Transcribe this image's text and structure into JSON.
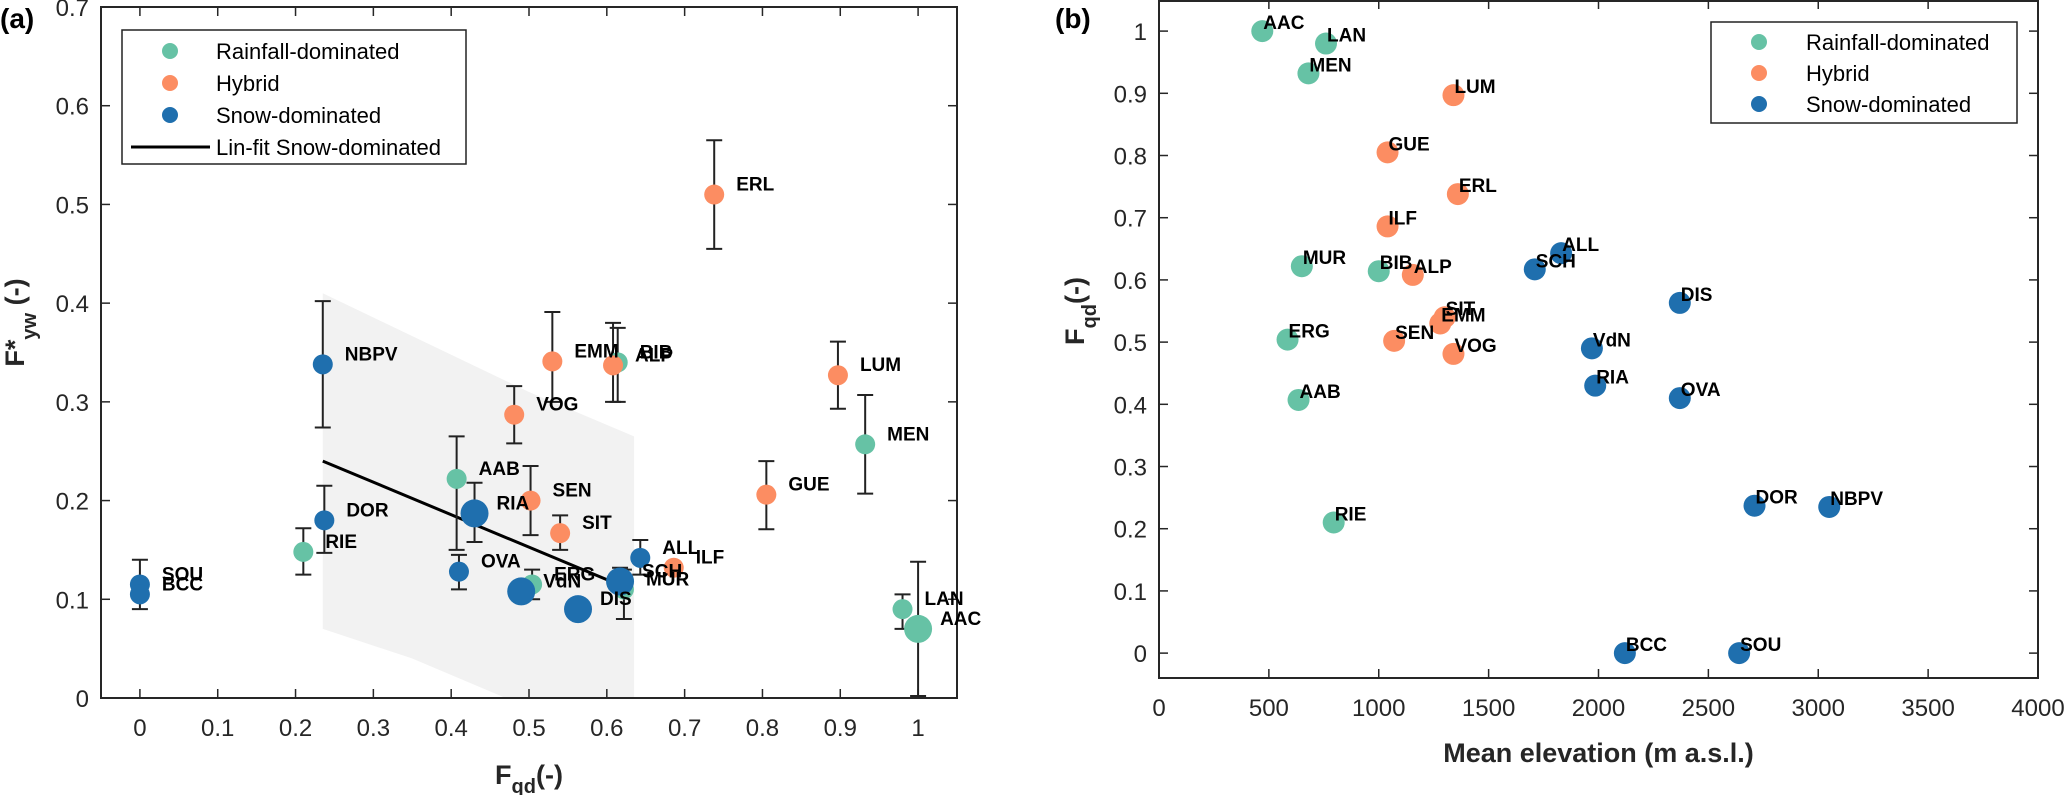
{
  "chart_data": [
    {
      "panel_label": "(a)",
      "type": "scatter",
      "xlabel_main": "F",
      "xlabel_sub": "qd",
      "xlabel_suffix": "(-)",
      "ylabel_main": "F*",
      "ylabel_sub": "yw",
      "ylabel_suffix": " (-)",
      "xlim": [
        -0.05,
        1.05
      ],
      "ylim": [
        0,
        0.7
      ],
      "xticks": [
        "0",
        "0.1",
        "0.2",
        "0.3",
        "0.4",
        "0.5",
        "0.6",
        "0.7",
        "0.8",
        "0.9",
        "1"
      ],
      "xtick_values": [
        0,
        0.1,
        0.2,
        0.3,
        0.4,
        0.5,
        0.6,
        0.7,
        0.8,
        0.9,
        1.0
      ],
      "yticks": [
        "0",
        "0.1",
        "0.2",
        "0.3",
        "0.4",
        "0.5",
        "0.6",
        "0.7"
      ],
      "ytick_values": [
        0,
        0.1,
        0.2,
        0.3,
        0.4,
        0.5,
        0.6,
        0.7
      ],
      "grid": false,
      "legend": {
        "placement": "top-left",
        "entries": [
          {
            "label": "Rainfall-dominated",
            "kind": "marker",
            "group": "rain"
          },
          {
            "label": "Hybrid",
            "kind": "marker",
            "group": "hybrid"
          },
          {
            "label": "Snow-dominated",
            "kind": "marker",
            "group": "snow"
          },
          {
            "label": "Lin-fit Snow-dominated",
            "kind": "line"
          }
        ]
      },
      "fit_line": {
        "x": [
          0.235,
          0.63
        ],
        "y": [
          0.24,
          0.11
        ]
      },
      "confidence_band": {
        "upper": [
          [
            0.235,
            0.41
          ],
          [
            0.5,
            0.31
          ],
          [
            0.635,
            0.265
          ]
        ],
        "lower": [
          [
            0.235,
            0.07
          ],
          [
            0.35,
            0.04
          ],
          [
            0.47,
            0.0
          ],
          [
            0.635,
            0.0
          ]
        ]
      },
      "points": [
        {
          "name": "SOU",
          "group": "snow",
          "x": 0.0,
          "y": 0.115,
          "err": [
            0.105,
            0.14
          ],
          "big": false
        },
        {
          "name": "BCC",
          "group": "snow",
          "x": 0.0,
          "y": 0.105,
          "err": [
            0.09,
            0.115
          ],
          "big": false
        },
        {
          "name": "RIE",
          "group": "rain",
          "x": 0.21,
          "y": 0.148,
          "err": [
            0.125,
            0.172
          ],
          "big": false
        },
        {
          "name": "DOR",
          "group": "snow",
          "x": 0.237,
          "y": 0.18,
          "err": [
            0.147,
            0.215
          ],
          "big": false
        },
        {
          "name": "NBPV",
          "group": "snow",
          "x": 0.235,
          "y": 0.338,
          "err": [
            0.274,
            0.402
          ],
          "big": false
        },
        {
          "name": "AAB",
          "group": "rain",
          "x": 0.407,
          "y": 0.222,
          "err": [
            0.15,
            0.265
          ],
          "big": false
        },
        {
          "name": "RIA",
          "group": "snow",
          "x": 0.43,
          "y": 0.187,
          "err": [
            0.158,
            0.218
          ],
          "big": true
        },
        {
          "name": "OVA",
          "group": "snow",
          "x": 0.41,
          "y": 0.128,
          "err": [
            0.11,
            0.145
          ],
          "big": false
        },
        {
          "name": "ERG",
          "group": "rain",
          "x": 0.504,
          "y": 0.115,
          "err": [
            0.1,
            0.13
          ],
          "big": false
        },
        {
          "name": "VdN",
          "group": "snow",
          "x": 0.49,
          "y": 0.108,
          "err": null,
          "big": true
        },
        {
          "name": "SEN",
          "group": "hybrid",
          "x": 0.502,
          "y": 0.2,
          "err": [
            0.165,
            0.235
          ],
          "big": false
        },
        {
          "name": "VOG",
          "group": "hybrid",
          "x": 0.481,
          "y": 0.287,
          "err": [
            0.258,
            0.316
          ],
          "big": false
        },
        {
          "name": "EMM",
          "group": "hybrid",
          "x": 0.53,
          "y": 0.341,
          "err": [
            0.3,
            0.391
          ],
          "big": false
        },
        {
          "name": "SIT",
          "group": "hybrid",
          "x": 0.54,
          "y": 0.167,
          "err": [
            0.15,
            0.185
          ],
          "big": false
        },
        {
          "name": "DIS",
          "group": "snow",
          "x": 0.563,
          "y": 0.09,
          "err": null,
          "big": true
        },
        {
          "name": "BIB",
          "group": "rain",
          "x": 0.614,
          "y": 0.34,
          "err": [
            0.3,
            0.375
          ],
          "big": false
        },
        {
          "name": "ALP",
          "group": "hybrid",
          "x": 0.608,
          "y": 0.337,
          "err": [
            0.3,
            0.38
          ],
          "big": false
        },
        {
          "name": "MUR",
          "group": "rain",
          "x": 0.622,
          "y": 0.11,
          "err": [
            0.08,
            0.13
          ],
          "big": false
        },
        {
          "name": "SCH",
          "group": "snow",
          "x": 0.617,
          "y": 0.118,
          "err": [
            0.11,
            0.132
          ],
          "big": true
        },
        {
          "name": "ALL",
          "group": "snow",
          "x": 0.643,
          "y": 0.142,
          "err": [
            0.125,
            0.16
          ],
          "big": false
        },
        {
          "name": "ILF",
          "group": "hybrid",
          "x": 0.686,
          "y": 0.132,
          "err": null,
          "big": false
        },
        {
          "name": "ERL",
          "group": "hybrid",
          "x": 0.738,
          "y": 0.51,
          "err": [
            0.455,
            0.565
          ],
          "big": false
        },
        {
          "name": "GUE",
          "group": "hybrid",
          "x": 0.805,
          "y": 0.206,
          "err": [
            0.171,
            0.24
          ],
          "big": false
        },
        {
          "name": "LUM",
          "group": "hybrid",
          "x": 0.897,
          "y": 0.327,
          "err": [
            0.293,
            0.361
          ],
          "big": false
        },
        {
          "name": "MEN",
          "group": "rain",
          "x": 0.932,
          "y": 0.257,
          "err": [
            0.207,
            0.307
          ],
          "big": false
        },
        {
          "name": "LAN",
          "group": "rain",
          "x": 0.98,
          "y": 0.09,
          "err": [
            0.07,
            0.105
          ],
          "big": false
        },
        {
          "name": "AAC",
          "group": "rain",
          "x": 1.0,
          "y": 0.07,
          "err": [
            0.002,
            0.138
          ],
          "big": true
        }
      ]
    },
    {
      "panel_label": "(b)",
      "type": "scatter",
      "xlabel": "Mean elevation (m a.s.l.)",
      "ylabel_main": "F",
      "ylabel_sub": "qd",
      "ylabel_suffix": "(-)",
      "xlim": [
        0,
        4000
      ],
      "ylim": [
        -0.04,
        1.05
      ],
      "xticks": [
        "0",
        "500",
        "1000",
        "1500",
        "2000",
        "2500",
        "3000",
        "3500",
        "4000"
      ],
      "xtick_values": [
        0,
        500,
        1000,
        1500,
        2000,
        2500,
        3000,
        3500,
        4000
      ],
      "yticks": [
        "0",
        "0.1",
        "0.2",
        "0.3",
        "0.4",
        "0.5",
        "0.6",
        "0.7",
        "0.8",
        "0.9",
        "1"
      ],
      "ytick_values": [
        0,
        0.1,
        0.2,
        0.3,
        0.4,
        0.5,
        0.6,
        0.7,
        0.8,
        0.9,
        1.0
      ],
      "grid": false,
      "legend": {
        "placement": "top-right",
        "entries": [
          {
            "label": "Rainfall-dominated",
            "group": "rain"
          },
          {
            "label": "Hybrid",
            "group": "hybrid"
          },
          {
            "label": "Snow-dominated",
            "group": "snow"
          }
        ]
      },
      "points": [
        {
          "name": "AAC",
          "group": "rain",
          "x": 470,
          "y": 1.0
        },
        {
          "name": "LAN",
          "group": "rain",
          "x": 760,
          "y": 0.98
        },
        {
          "name": "MEN",
          "group": "rain",
          "x": 680,
          "y": 0.932
        },
        {
          "name": "LUM",
          "group": "hybrid",
          "x": 1340,
          "y": 0.897
        },
        {
          "name": "GUE",
          "group": "hybrid",
          "x": 1040,
          "y": 0.805
        },
        {
          "name": "ERL",
          "group": "hybrid",
          "x": 1360,
          "y": 0.738
        },
        {
          "name": "ILF",
          "group": "hybrid",
          "x": 1040,
          "y": 0.686
        },
        {
          "name": "MUR",
          "group": "rain",
          "x": 650,
          "y": 0.622
        },
        {
          "name": "BIB",
          "group": "rain",
          "x": 1000,
          "y": 0.614
        },
        {
          "name": "ALP",
          "group": "hybrid",
          "x": 1155,
          "y": 0.608
        },
        {
          "name": "SCH",
          "group": "snow",
          "x": 1710,
          "y": 0.617
        },
        {
          "name": "ALL",
          "group": "snow",
          "x": 1830,
          "y": 0.643
        },
        {
          "name": "DIS",
          "group": "snow",
          "x": 2370,
          "y": 0.563
        },
        {
          "name": "SIT",
          "group": "hybrid",
          "x": 1300,
          "y": 0.54
        },
        {
          "name": "EMM",
          "group": "hybrid",
          "x": 1280,
          "y": 0.53
        },
        {
          "name": "SEN",
          "group": "hybrid",
          "x": 1070,
          "y": 0.502
        },
        {
          "name": "VOG",
          "group": "hybrid",
          "x": 1340,
          "y": 0.481
        },
        {
          "name": "ERG",
          "group": "rain",
          "x": 585,
          "y": 0.504
        },
        {
          "name": "VdN",
          "group": "snow",
          "x": 1970,
          "y": 0.49
        },
        {
          "name": "RIA",
          "group": "snow",
          "x": 1985,
          "y": 0.43
        },
        {
          "name": "OVA",
          "group": "snow",
          "x": 2370,
          "y": 0.41
        },
        {
          "name": "AAB",
          "group": "rain",
          "x": 635,
          "y": 0.407
        },
        {
          "name": "RIE",
          "group": "rain",
          "x": 795,
          "y": 0.21
        },
        {
          "name": "DOR",
          "group": "snow",
          "x": 2710,
          "y": 0.237
        },
        {
          "name": "NBPV",
          "group": "snow",
          "x": 3050,
          "y": 0.235
        },
        {
          "name": "BCC",
          "group": "snow",
          "x": 2120,
          "y": 0.0
        },
        {
          "name": "SOU",
          "group": "snow",
          "x": 2640,
          "y": 0.0
        }
      ]
    }
  ],
  "colors": {
    "rain": "#66c2a5",
    "hybrid": "#fc8d62",
    "snow": "#1f6fae",
    "band": "#f2f2f2",
    "axis": "#262626"
  }
}
